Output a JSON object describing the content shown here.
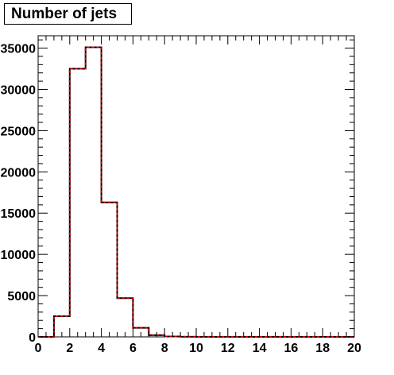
{
  "chart_data": {
    "type": "histogram",
    "title": "Number of jets",
    "xlabel": "",
    "ylabel": "",
    "xlim": [
      0,
      20
    ],
    "ylim": [
      0,
      36500
    ],
    "x_ticks": [
      0,
      2,
      4,
      6,
      8,
      10,
      12,
      14,
      16,
      18,
      20
    ],
    "y_ticks": [
      0,
      5000,
      10000,
      15000,
      20000,
      25000,
      30000,
      35000
    ],
    "y_tick_labels": [
      "0",
      "5000",
      "10000",
      "15000",
      "20000",
      "25000",
      "30000",
      "35000"
    ],
    "bin_edges": [
      0,
      1,
      2,
      3,
      4,
      5,
      6,
      7,
      8,
      9,
      10,
      11,
      12,
      13,
      14,
      15,
      16,
      17,
      18,
      19,
      20
    ],
    "series": [
      {
        "color": "#000000",
        "style": "solid",
        "values": [
          0,
          2500,
          32500,
          35100,
          16300,
          4700,
          1100,
          200,
          50,
          10,
          0,
          0,
          0,
          0,
          0,
          0,
          0,
          0,
          0,
          0
        ]
      },
      {
        "color": "#cc0000",
        "style": "dashed",
        "values": [
          0,
          2500,
          32500,
          35100,
          16300,
          4700,
          1100,
          200,
          50,
          10,
          0,
          0,
          0,
          0,
          0,
          0,
          0,
          0,
          0,
          0
        ]
      }
    ],
    "grid": false,
    "legend": "none"
  }
}
